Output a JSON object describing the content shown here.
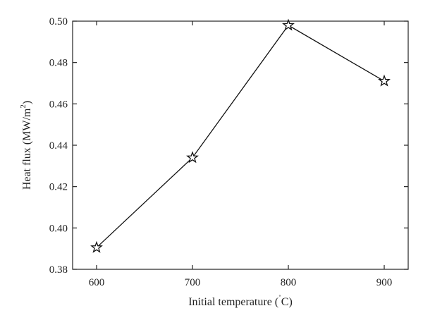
{
  "chart_data": {
    "type": "line",
    "x": [
      600,
      700,
      800,
      900
    ],
    "series": [
      {
        "values": [
          0.3905,
          0.434,
          0.498,
          0.471
        ],
        "marker": "star-open",
        "color": "#111111"
      }
    ],
    "xlim": [
      575,
      925
    ],
    "ylim": [
      0.38,
      0.5
    ],
    "xticks": [
      600,
      700,
      800,
      900
    ],
    "yticks": [
      0.38,
      0.4,
      0.42,
      0.44,
      0.46,
      0.48,
      0.5
    ],
    "xlabel_parts": {
      "pre": "Initial temperature (",
      "sup": "˚",
      "post": "C)"
    },
    "ylabel_parts": {
      "pre": "Heat flux (MW/m",
      "sup": "2",
      "post": ")"
    },
    "grid": false,
    "legend": "none"
  }
}
